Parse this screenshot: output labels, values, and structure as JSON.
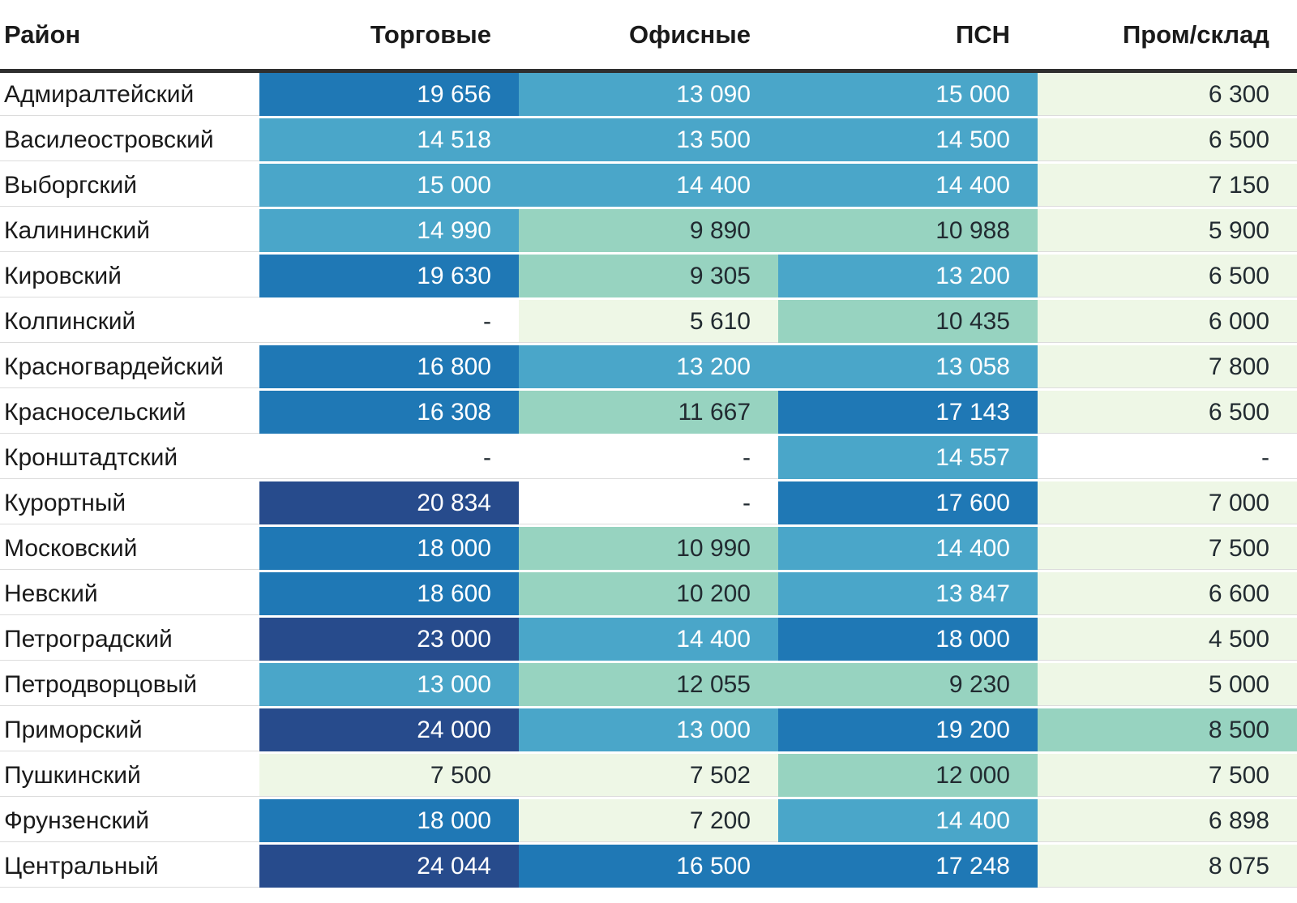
{
  "table": {
    "columns": [
      {
        "key": "district",
        "label": "Район"
      },
      {
        "key": "torgovye",
        "label": "Торговые"
      },
      {
        "key": "ofisnye",
        "label": "Офисные"
      },
      {
        "key": "psn",
        "label": "ПСН"
      },
      {
        "key": "prom",
        "label": "Пром/склад"
      }
    ],
    "missing_marker": "-",
    "rows": [
      {
        "district": "Адмиралтейский",
        "cells": [
          {
            "v": "19 656",
            "level": 4
          },
          {
            "v": "13 090",
            "level": 3
          },
          {
            "v": "15 000",
            "level": 3
          },
          {
            "v": "6 300",
            "level": 1
          }
        ]
      },
      {
        "district": "Василеостровский",
        "cells": [
          {
            "v": "14 518",
            "level": 3
          },
          {
            "v": "13 500",
            "level": 3
          },
          {
            "v": "14 500",
            "level": 3
          },
          {
            "v": "6 500",
            "level": 1
          }
        ]
      },
      {
        "district": "Выборгский",
        "cells": [
          {
            "v": "15 000",
            "level": 3
          },
          {
            "v": "14 400",
            "level": 3
          },
          {
            "v": "14 400",
            "level": 3
          },
          {
            "v": "7 150",
            "level": 1
          }
        ]
      },
      {
        "district": "Калининский",
        "cells": [
          {
            "v": "14 990",
            "level": 3
          },
          {
            "v": "9 890",
            "level": 2
          },
          {
            "v": "10 988",
            "level": 2
          },
          {
            "v": "5 900",
            "level": 1
          }
        ]
      },
      {
        "district": "Кировский",
        "cells": [
          {
            "v": "19 630",
            "level": 4
          },
          {
            "v": "9 305",
            "level": 2
          },
          {
            "v": "13 200",
            "level": 3
          },
          {
            "v": "6 500",
            "level": 1
          }
        ]
      },
      {
        "district": "Колпинский",
        "cells": [
          {
            "v": "-",
            "level": 0
          },
          {
            "v": "5 610",
            "level": 1
          },
          {
            "v": "10 435",
            "level": 2
          },
          {
            "v": "6 000",
            "level": 1
          }
        ]
      },
      {
        "district": "Красногвардейский",
        "cells": [
          {
            "v": "16 800",
            "level": 4
          },
          {
            "v": "13 200",
            "level": 3
          },
          {
            "v": "13 058",
            "level": 3
          },
          {
            "v": "7 800",
            "level": 1
          }
        ]
      },
      {
        "district": "Красносельский",
        "cells": [
          {
            "v": "16 308",
            "level": 4
          },
          {
            "v": "11 667",
            "level": 2
          },
          {
            "v": "17 143",
            "level": 4
          },
          {
            "v": "6 500",
            "level": 1
          }
        ]
      },
      {
        "district": "Кронштадтский",
        "cells": [
          {
            "v": "-",
            "level": 0
          },
          {
            "v": "-",
            "level": 0
          },
          {
            "v": "14 557",
            "level": 3
          },
          {
            "v": "-",
            "level": 0
          }
        ]
      },
      {
        "district": "Курортный",
        "cells": [
          {
            "v": "20 834",
            "level": 5
          },
          {
            "v": "-",
            "level": 0
          },
          {
            "v": "17 600",
            "level": 4
          },
          {
            "v": "7 000",
            "level": 1
          }
        ]
      },
      {
        "district": "Московский",
        "cells": [
          {
            "v": "18 000",
            "level": 4
          },
          {
            "v": "10 990",
            "level": 2
          },
          {
            "v": "14 400",
            "level": 3
          },
          {
            "v": "7 500",
            "level": 1
          }
        ]
      },
      {
        "district": "Невский",
        "cells": [
          {
            "v": "18 600",
            "level": 4
          },
          {
            "v": "10 200",
            "level": 2
          },
          {
            "v": "13 847",
            "level": 3
          },
          {
            "v": "6 600",
            "level": 1
          }
        ]
      },
      {
        "district": "Петроградский",
        "cells": [
          {
            "v": "23 000",
            "level": 5
          },
          {
            "v": "14 400",
            "level": 3
          },
          {
            "v": "18 000",
            "level": 4
          },
          {
            "v": "4 500",
            "level": 1
          }
        ]
      },
      {
        "district": "Петродворцовый",
        "cells": [
          {
            "v": "13 000",
            "level": 3
          },
          {
            "v": "12 055",
            "level": 2
          },
          {
            "v": "9 230",
            "level": 2
          },
          {
            "v": "5 000",
            "level": 1
          }
        ]
      },
      {
        "district": "Приморский",
        "cells": [
          {
            "v": "24 000",
            "level": 5
          },
          {
            "v": "13 000",
            "level": 3
          },
          {
            "v": "19 200",
            "level": 4
          },
          {
            "v": "8 500",
            "level": 2
          }
        ]
      },
      {
        "district": "Пушкинский",
        "cells": [
          {
            "v": "7 500",
            "level": 1
          },
          {
            "v": "7 502",
            "level": 1
          },
          {
            "v": "12 000",
            "level": 2
          },
          {
            "v": "7 500",
            "level": 1
          }
        ]
      },
      {
        "district": "Фрунзенский",
        "cells": [
          {
            "v": "18 000",
            "level": 4
          },
          {
            "v": "7 200",
            "level": 1
          },
          {
            "v": "14 400",
            "level": 3
          },
          {
            "v": "6 898",
            "level": 1
          }
        ]
      },
      {
        "district": "Центральный",
        "cells": [
          {
            "v": "24 044",
            "level": 5
          },
          {
            "v": "16 500",
            "level": 4
          },
          {
            "v": "17 248",
            "level": 4
          },
          {
            "v": "8 075",
            "level": 1
          }
        ]
      }
    ]
  },
  "palette": {
    "lvl0": "#ffffff",
    "lvl1": "#eef7e6",
    "lvl2": "#97d3c0",
    "lvl3": "#4aa6c9",
    "lvl4": "#1f78b5",
    "lvl5": "#274b8c",
    "text_dark": "#222b31",
    "text_light": "#ffffff",
    "header_rule": "#2f2f2f",
    "row_hairline": "#dcdcdc"
  },
  "chart_data": {
    "type": "heatmap",
    "title": "",
    "row_label": "Район",
    "rows": [
      "Адмиралтейский",
      "Василеостровский",
      "Выборгский",
      "Калининский",
      "Кировский",
      "Колпинский",
      "Красногвардейский",
      "Красносельский",
      "Кронштадтский",
      "Курортный",
      "Московский",
      "Невский",
      "Петроградский",
      "Петродворцовый",
      "Приморский",
      "Пушкинский",
      "Фрунзенский",
      "Центральный"
    ],
    "columns": [
      "Торговые",
      "Офисные",
      "ПСН",
      "Пром/склад"
    ],
    "values": [
      [
        19656,
        13090,
        15000,
        6300
      ],
      [
        14518,
        13500,
        14500,
        6500
      ],
      [
        15000,
        14400,
        14400,
        7150
      ],
      [
        14990,
        9890,
        10988,
        5900
      ],
      [
        19630,
        9305,
        13200,
        6500
      ],
      [
        null,
        5610,
        10435,
        6000
      ],
      [
        16800,
        13200,
        13058,
        7800
      ],
      [
        16308,
        11667,
        17143,
        6500
      ],
      [
        null,
        null,
        14557,
        null
      ],
      [
        20834,
        null,
        17600,
        7000
      ],
      [
        18000,
        10990,
        14400,
        7500
      ],
      [
        18600,
        10200,
        13847,
        6600
      ],
      [
        23000,
        14400,
        18000,
        4500
      ],
      [
        13000,
        12055,
        9230,
        5000
      ],
      [
        24000,
        13000,
        19200,
        8500
      ],
      [
        7500,
        7502,
        12000,
        7500
      ],
      [
        18000,
        7200,
        14400,
        6898
      ],
      [
        24044,
        16500,
        17248,
        8075
      ]
    ],
    "color_bins": [
      {
        "level": 0,
        "meaning": "no data (shown as '-')",
        "color": "#ffffff"
      },
      {
        "level": 1,
        "range_approx": [
          4500,
          8200
        ],
        "color": "#eef7e6"
      },
      {
        "level": 2,
        "range_approx": [
          8200,
          12400
        ],
        "color": "#97d3c0"
      },
      {
        "level": 3,
        "range_approx": [
          12400,
          15500
        ],
        "color": "#4aa6c9"
      },
      {
        "level": 4,
        "range_approx": [
          15500,
          20000
        ],
        "color": "#1f78b5"
      },
      {
        "level": 5,
        "range_approx": [
          20000,
          24044
        ],
        "color": "#274b8c"
      }
    ],
    "legend_position": "none",
    "grid": "white gaps between cells, thin gray rules between rows in light areas"
  }
}
